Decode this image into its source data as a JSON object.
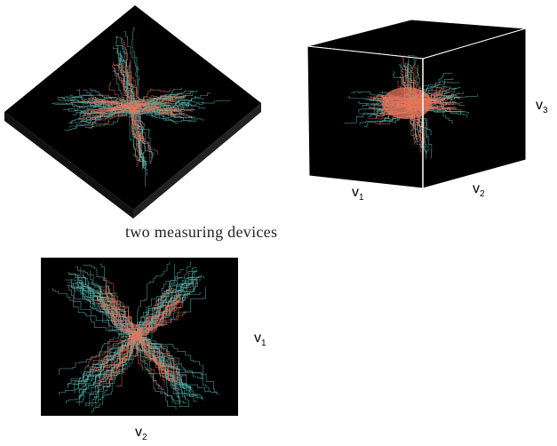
{
  "caption": "two measuring devices",
  "cube_labels": {
    "v1": {
      "main": "v",
      "sub": "1"
    },
    "v2": {
      "main": "v",
      "sub": "2"
    },
    "v3": {
      "main": "v",
      "sub": "3"
    }
  },
  "flat_labels": {
    "v1": {
      "main": "v",
      "sub": "1"
    },
    "v2": {
      "main": "v",
      "sub": "2"
    }
  },
  "colors": {
    "background": "#000000",
    "series_a": "#e8735a",
    "series_b": "#5bb8b3",
    "frame": "#ffffff"
  }
}
